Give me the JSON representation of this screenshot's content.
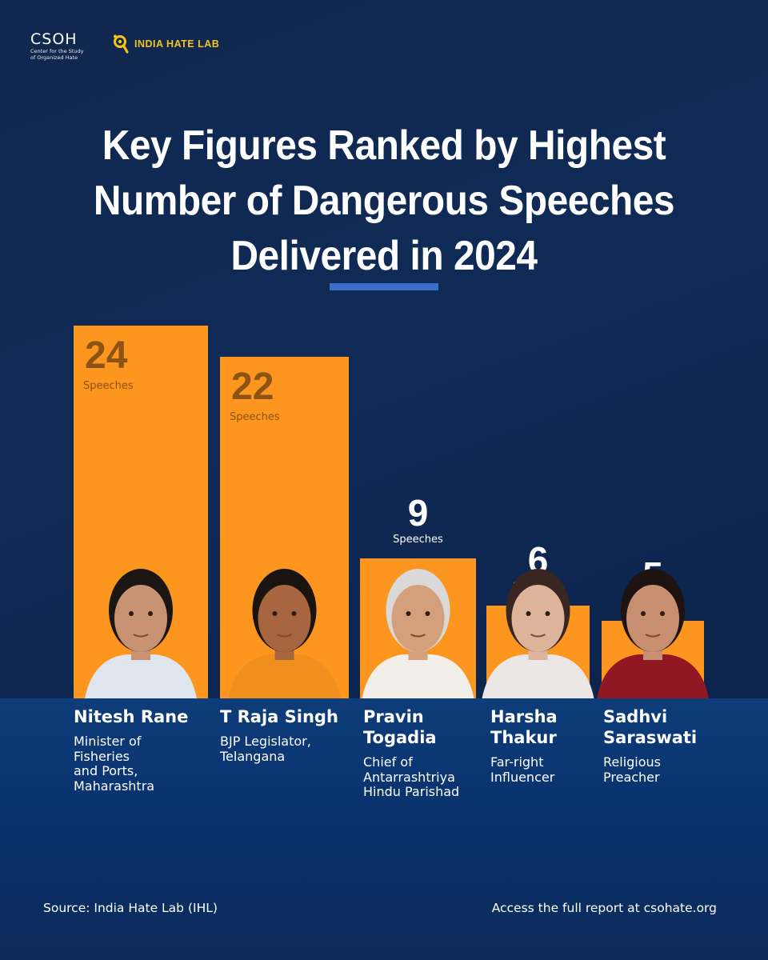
{
  "logos": {
    "csoh_mark": "CSOH",
    "csoh_sub": [
      "Center for the Study",
      "of Organized Hate"
    ],
    "ihl_name": "INDIA HATE LAB"
  },
  "title_lines": [
    "Key Figures Ranked by Highest",
    "Number of Dangerous Speeches",
    "Delivered in 2024"
  ],
  "chart_data": {
    "type": "bar",
    "title": "Key Figures Ranked by Highest Number of Dangerous Speeches Delivered in 2024",
    "categories": [
      "Nitesh Rane",
      "T Raja Singh",
      "Pravin Togadia",
      "Harsha Thakur",
      "Sadhvi Saraswati"
    ],
    "values": [
      24,
      22,
      9,
      6,
      5
    ],
    "value_unit": "Speeches",
    "bar_color": "#fc961e",
    "ylim": [
      0,
      24
    ],
    "grid": false,
    "xlabel": "",
    "ylabel": ""
  },
  "people": [
    {
      "name_lines": [
        "Nitesh Rane"
      ],
      "role_lines": [
        "Minister of",
        "Fisheries",
        "and Ports,",
        "Maharashtra"
      ]
    },
    {
      "name_lines": [
        "T Raja Singh"
      ],
      "role_lines": [
        "BJP Legislator,",
        "Telangana"
      ]
    },
    {
      "name_lines": [
        "Pravin",
        "Togadia"
      ],
      "role_lines": [
        "Chief of",
        "Antarrashtriya",
        "Hindu Parishad"
      ]
    },
    {
      "name_lines": [
        "Harsha",
        "Thakur"
      ],
      "role_lines": [
        "Far-right",
        "Influencer"
      ]
    },
    {
      "name_lines": [
        "Sadhvi",
        "Saraswati"
      ],
      "role_lines": [
        "Religious",
        "Preacher"
      ]
    }
  ],
  "footer": {
    "source": "Source: India Hate Lab (IHL)",
    "access": "Access the full report at csohate.org"
  },
  "colors": {
    "accent": "#fc961e",
    "background": "#10284f",
    "rule": "#3a6cc8"
  }
}
